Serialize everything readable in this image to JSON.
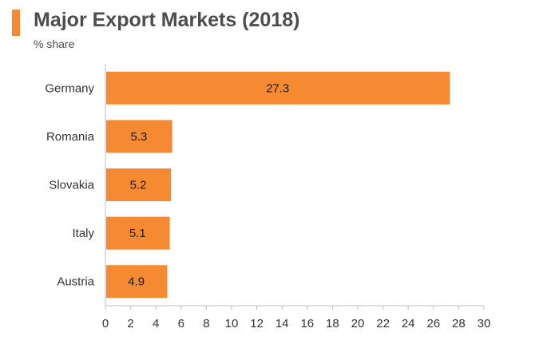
{
  "header": {
    "title": "Major Export Markets (2018)",
    "subtitle": "% share"
  },
  "colors": {
    "accent": "#f58a32",
    "bar": "#f58a32",
    "axis": "#bfbfbf",
    "text": "#333333"
  },
  "chart_data": {
    "type": "bar",
    "orientation": "horizontal",
    "title": "Major Export Markets (2018)",
    "subtitle": "% share",
    "categories": [
      "Germany",
      "Romania",
      "Slovakia",
      "Italy",
      "Austria"
    ],
    "values": [
      27.3,
      5.3,
      5.2,
      5.1,
      4.9
    ],
    "value_labels": [
      "27.3",
      "5.3",
      "5.2",
      "5.1",
      "4.9"
    ],
    "xlim": [
      0,
      30
    ],
    "xticks": [
      "0",
      "2",
      "4",
      "6",
      "8",
      "10",
      "12",
      "14",
      "16",
      "18",
      "20",
      "22",
      "24",
      "26",
      "28",
      "30"
    ],
    "xlabel": "",
    "ylabel": "",
    "grid": false,
    "legend": "none"
  }
}
